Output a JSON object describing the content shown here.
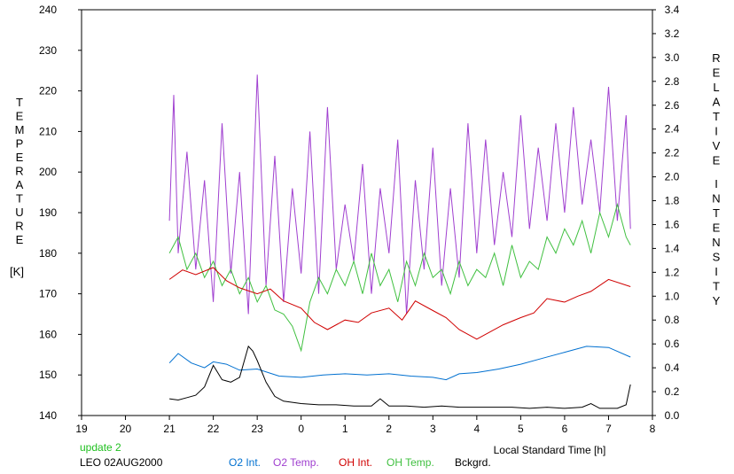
{
  "chart_data": {
    "type": "line",
    "left_axis": {
      "label_letters": [
        "T",
        "E",
        "M",
        "P",
        "E",
        "R",
        "A",
        "T",
        "U",
        "R",
        "E"
      ],
      "unit": "[K]",
      "min": 140,
      "max": 240,
      "step": 10,
      "ticks": [
        "140",
        "150",
        "160",
        "170",
        "180",
        "190",
        "200",
        "210",
        "220",
        "230",
        "240"
      ]
    },
    "right_axis": {
      "label_letters_1": [
        "R",
        "E",
        "L",
        "A",
        "T",
        "I",
        "V",
        "E"
      ],
      "label_letters_2": [
        "I",
        "N",
        "T",
        "E",
        "N",
        "S",
        "I",
        "T",
        "Y"
      ],
      "min": 0.0,
      "max": 3.4,
      "step": 0.2,
      "ticks": [
        "0.0",
        "0.2",
        "0.4",
        "0.6",
        "0.8",
        "1.0",
        "1.2",
        "1.4",
        "1.6",
        "1.8",
        "2.0",
        "2.2",
        "2.4",
        "2.6",
        "2.8",
        "3.0",
        "3.2",
        "3.4"
      ]
    },
    "x_axis": {
      "label": "Local Standard Time [h]",
      "min": 19,
      "max": 32,
      "ticks": [
        "19",
        "20",
        "21",
        "22",
        "23",
        "0",
        "1",
        "2",
        "3",
        "4",
        "5",
        "6",
        "7",
        "8"
      ]
    },
    "series": [
      {
        "name": "O2 Int.",
        "color": "#0070d0",
        "axis": "right",
        "x": [
          21.0,
          21.2,
          21.5,
          21.8,
          22.0,
          22.3,
          22.6,
          23.0,
          23.5,
          24.0,
          24.5,
          25.0,
          25.5,
          26.0,
          26.5,
          27.0,
          27.3,
          27.6,
          28.0,
          28.5,
          29.0,
          29.5,
          30.0,
          30.5,
          31.0,
          31.5
        ],
        "y": [
          0.44,
          0.52,
          0.44,
          0.4,
          0.45,
          0.43,
          0.38,
          0.39,
          0.33,
          0.32,
          0.34,
          0.35,
          0.34,
          0.35,
          0.33,
          0.32,
          0.3,
          0.35,
          0.36,
          0.39,
          0.43,
          0.48,
          0.53,
          0.58,
          0.57,
          0.49
        ]
      },
      {
        "name": "O2 Temp.",
        "color": "#a040d0",
        "axis": "left",
        "x": [
          21.0,
          21.1,
          21.2,
          21.4,
          21.6,
          21.8,
          22.0,
          22.2,
          22.4,
          22.6,
          22.8,
          23.0,
          23.2,
          23.4,
          23.6,
          23.8,
          24.0,
          24.2,
          24.4,
          24.6,
          24.8,
          25.0,
          25.2,
          25.4,
          25.6,
          25.8,
          26.0,
          26.2,
          26.4,
          26.6,
          26.8,
          27.0,
          27.2,
          27.4,
          27.6,
          27.8,
          28.0,
          28.2,
          28.4,
          28.6,
          28.8,
          29.0,
          29.2,
          29.4,
          29.6,
          29.8,
          30.0,
          30.2,
          30.4,
          30.6,
          30.8,
          31.0,
          31.2,
          31.4,
          31.5
        ],
        "y": [
          188,
          219,
          180,
          205,
          176,
          198,
          168,
          212,
          175,
          200,
          165,
          224,
          172,
          204,
          168,
          196,
          175,
          210,
          170,
          216,
          176,
          192,
          178,
          202,
          170,
          196,
          180,
          208,
          165,
          198,
          176,
          206,
          172,
          196,
          174,
          212,
          180,
          208,
          182,
          200,
          184,
          214,
          186,
          206,
          188,
          212,
          190,
          216,
          192,
          208,
          190,
          221,
          188,
          214,
          186
        ]
      },
      {
        "name": "OH Int.",
        "color": "#d00000",
        "axis": "right",
        "x": [
          21.0,
          21.3,
          21.6,
          22.0,
          22.3,
          22.6,
          23.0,
          23.3,
          23.6,
          24.0,
          24.3,
          24.6,
          25.0,
          25.3,
          25.6,
          26.0,
          26.3,
          26.6,
          27.0,
          27.3,
          27.6,
          28.0,
          28.3,
          28.6,
          29.0,
          29.3,
          29.6,
          30.0,
          30.3,
          30.6,
          31.0,
          31.5
        ],
        "y": [
          1.14,
          1.22,
          1.18,
          1.24,
          1.13,
          1.07,
          1.02,
          1.06,
          0.96,
          0.9,
          0.78,
          0.72,
          0.8,
          0.78,
          0.86,
          0.9,
          0.8,
          0.96,
          0.88,
          0.82,
          0.72,
          0.64,
          0.7,
          0.76,
          0.82,
          0.86,
          0.98,
          0.95,
          1.0,
          1.04,
          1.14,
          1.08
        ]
      },
      {
        "name": "OH Temp.",
        "color": "#40c040",
        "axis": "left",
        "x": [
          21.0,
          21.2,
          21.4,
          21.6,
          21.8,
          22.0,
          22.2,
          22.4,
          22.6,
          22.8,
          23.0,
          23.2,
          23.4,
          23.6,
          23.8,
          24.0,
          24.2,
          24.4,
          24.6,
          24.8,
          25.0,
          25.2,
          25.4,
          25.6,
          25.8,
          26.0,
          26.2,
          26.4,
          26.6,
          26.8,
          27.0,
          27.2,
          27.4,
          27.6,
          27.8,
          28.0,
          28.2,
          28.4,
          28.6,
          28.8,
          29.0,
          29.2,
          29.4,
          29.6,
          29.8,
          30.0,
          30.2,
          30.4,
          30.6,
          30.8,
          31.0,
          31.2,
          31.4,
          31.5
        ],
        "y": [
          180,
          184,
          176,
          180,
          174,
          178,
          172,
          176,
          170,
          174,
          168,
          172,
          166,
          165,
          162,
          156,
          168,
          174,
          170,
          176,
          172,
          178,
          170,
          180,
          172,
          176,
          168,
          178,
          172,
          180,
          174,
          176,
          170,
          178,
          172,
          176,
          174,
          180,
          172,
          182,
          174,
          178,
          176,
          184,
          180,
          186,
          182,
          188,
          180,
          190,
          184,
          192,
          184,
          182
        ]
      },
      {
        "name": "Bckgrd.",
        "color": "#000000",
        "axis": "right",
        "x": [
          21.0,
          21.2,
          21.4,
          21.6,
          21.8,
          22.0,
          22.1,
          22.2,
          22.4,
          22.6,
          22.8,
          22.9,
          23.0,
          23.2,
          23.4,
          23.6,
          24.0,
          24.4,
          24.8,
          25.2,
          25.6,
          25.8,
          26.0,
          26.4,
          26.8,
          27.2,
          27.6,
          28.0,
          28.4,
          28.8,
          29.2,
          29.6,
          30.0,
          30.4,
          30.6,
          30.8,
          31.0,
          31.2,
          31.4,
          31.5
        ],
        "y": [
          0.14,
          0.13,
          0.15,
          0.17,
          0.24,
          0.42,
          0.36,
          0.3,
          0.28,
          0.32,
          0.58,
          0.54,
          0.46,
          0.28,
          0.16,
          0.12,
          0.1,
          0.09,
          0.09,
          0.08,
          0.08,
          0.14,
          0.08,
          0.08,
          0.07,
          0.08,
          0.07,
          0.07,
          0.07,
          0.07,
          0.06,
          0.07,
          0.06,
          0.07,
          0.1,
          0.06,
          0.06,
          0.06,
          0.09,
          0.26
        ]
      }
    ]
  },
  "footer": {
    "update": "update 2",
    "station": "LEO 02AUG2000"
  },
  "colors": {
    "update": "#20c020",
    "grid": "#000000"
  }
}
